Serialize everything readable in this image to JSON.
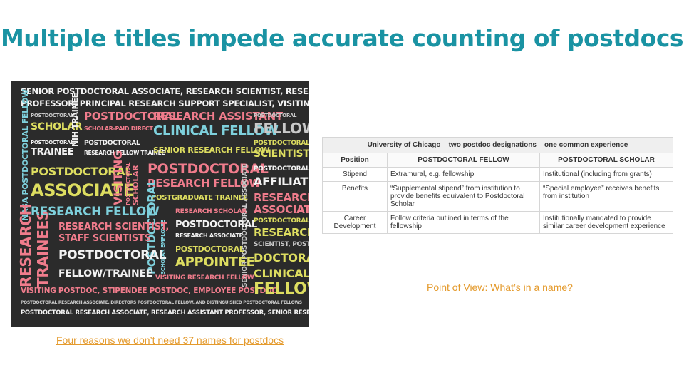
{
  "slide": {
    "title": "Multiple titles impede accurate counting of postdocs"
  },
  "word_cloud": {
    "rows": {
      "r1": "Senior Postdoctoral Associate, Research Scientist, Research Assistant",
      "r2": "Professor, Principal Research Support Specialist, Visiting Scholar",
      "postdoctoral_small_a": "Postdoctoral",
      "scholar_a": "Scholar",
      "nih_trainee": "NIH Trainee",
      "postdoctoral_big": "Postdoctoral",
      "research_assistant": "Research Assistant",
      "postdoctoral_small_b": "Postdoctoral",
      "scholar_paid_direct": "Scholar-Paid Direct",
      "clinical_fellow_a": "Clinical Fellow",
      "fellow_a": "Fellow",
      "postdoctoral_small_c": "Postdoctoral",
      "trainee_a": "Trainee",
      "research_fellow_trainee": "Research Fellow Trainee",
      "senior_research_fellow": "Senior Research Fellow",
      "postdoctoral_small_d": "Postdoctoral",
      "scientists_a": "Scientists",
      "postdoctoral_c": "Postdoctoral",
      "visiting": "Visiting",
      "postdoctoral_vert_small": "Postdoctoral",
      "scholar_vert": "Scholar",
      "postdoctoral_e": "Postdoctoral",
      "postdoctoral_small_e": "Postdoctoral",
      "associate_a": "Associate",
      "research_fellow_a": "Research Fellow",
      "affiliate": "Affiliate",
      "postgraduate_trainee": "Postgraduate Trainee",
      "research_a": "Research",
      "research_fellow_b": "Research Fellow",
      "research_scholar": "Research Scholar",
      "associate_b": "Associate",
      "research_scientist": "Research Scientist,",
      "postdoctoral_f": "Postdoctoral",
      "postdoctoral_small_f": "Postdoctoral",
      "staff_scientists": "Staff Scientists",
      "research_associate": "Research Associate",
      "research_b": "Research",
      "postdoctoral_g": "Postdoctoral",
      "scientist_post": "Scientist, Post",
      "postdoctoral_h": "Postdoctoral",
      "doctoral": "Doctoral",
      "appointee": "Appointee",
      "fellow_trainee": "Fellow/Trainee",
      "visiting_research_fellow": "Visiting Research Fellow",
      "clinical_a": "Clinical",
      "visiting_postdoc": "Visiting Postdoc, Stipendee Postdoc, Employee Postdoc",
      "fellow_b": "Fellow",
      "r_small": "Postdoctoral Research Associate, Directors Postdoctoral Fellow, and Distinguished Postdoctoral Fellows",
      "r_last": "Postdoctoral Research Associate, Research Assistant Professor, Senior Research Scholar",
      "v_nasa": "NASA Postdoctoral Fellow",
      "v_research": "Research",
      "v_trainees": "Trainees",
      "v_postdoctoral": "Postdoctoral",
      "v_scholar_employee": "Scholar Employee",
      "v_senior_postdoctoral_associate": "Senior Postdoctoral Associate",
      "v_postdoctoral_scholar": "Postdoctoral Scholar"
    }
  },
  "links": {
    "four_reasons": "Four reasons we don’t need 37 names for postdocs",
    "point_of_view": "Point of View: What’s in a name?"
  },
  "table": {
    "caption": "University of Chicago – two postdoc designations – one common experience",
    "headers": [
      "Position",
      "POSTDOCTORAL FELLOW",
      "POSTDOCTORAL SCHOLAR"
    ],
    "rows": [
      {
        "position": "Stipend",
        "fellow": "Extramural, e.g. fellowship",
        "scholar": "Institutional (including from grants)"
      },
      {
        "position": "Benefits",
        "fellow": "“Supplemental stipend” from institution to provide benefits equivalent to Postdoctoral Scholar",
        "scholar": "“Special employee” receives benefits from institution"
      },
      {
        "position": "Career Development",
        "fellow": "Follow criteria outlined in terms of the fellowship",
        "scholar": "Institutionally mandated to provide similar career development experience"
      }
    ]
  }
}
